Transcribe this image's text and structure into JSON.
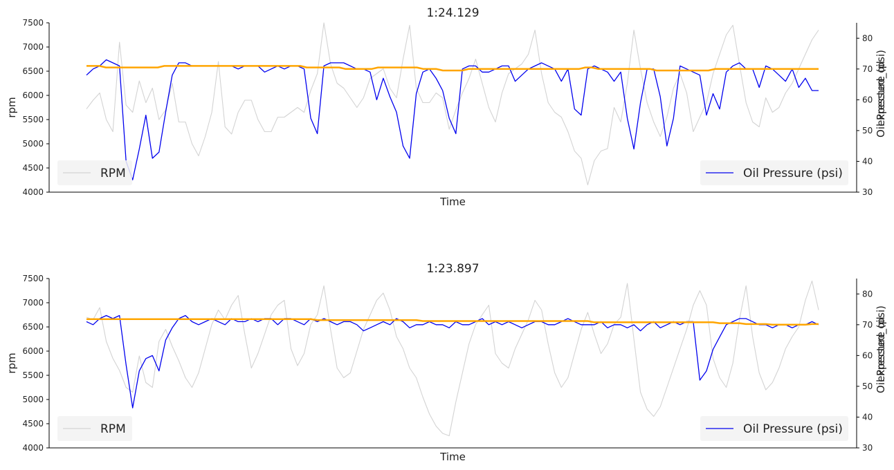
{
  "chart_data": [
    {
      "type": "line",
      "title": "1:24.129",
      "xlabel": "Time",
      "ylabel": "rpm",
      "y2label": "Oil Pressure (psi)",
      "y2label_overlap": "expected_oil",
      "ylim": [
        4000,
        7500
      ],
      "y2lim": [
        30,
        85
      ],
      "yticks": [
        4000,
        4500,
        5000,
        5500,
        6000,
        6500,
        7000,
        7500
      ],
      "y2ticks": [
        30,
        40,
        50,
        60,
        70,
        80
      ],
      "legend_left": {
        "label": "RPM",
        "placement": "lower-left"
      },
      "legend_right": {
        "label": "Oil Pressure (psi)",
        "placement": "lower-right"
      },
      "colors": {
        "rpm": "#d3d3d3",
        "oil": "#0000ee",
        "expected": "#ffa500"
      },
      "series": [
        {
          "key": "rpm",
          "name": "RPM",
          "axis": "left",
          "values": [
            5720,
            5900,
            6050,
            5500,
            5250,
            7100,
            5800,
            5650,
            6300,
            5850,
            6150,
            5500,
            5700,
            6250,
            5450,
            5450,
            5000,
            4750,
            5150,
            5650,
            6700,
            5350,
            5200,
            5650,
            5900,
            5900,
            5500,
            5250,
            5250,
            5550,
            5550,
            5650,
            5750,
            5650,
            6100,
            6450,
            7500,
            6650,
            6250,
            6150,
            5950,
            5750,
            5950,
            6350,
            6450,
            6550,
            6150,
            5950,
            6750,
            7450,
            6150,
            5850,
            5850,
            6050,
            5950,
            5300,
            5700,
            6050,
            6350,
            6750,
            6250,
            5750,
            5450,
            6050,
            6450,
            6550,
            6650,
            6850,
            7350,
            6450,
            5850,
            5650,
            5550,
            5250,
            4850,
            4700,
            4150,
            4650,
            4850,
            4900,
            5750,
            5450,
            6250,
            7350,
            6550,
            5850,
            5450,
            5150,
            5550,
            6150,
            6450,
            6050,
            5250,
            5550,
            5850,
            6450,
            6850,
            7250,
            7450,
            6650,
            5850,
            5450,
            5350,
            5950,
            5650,
            5750,
            6050,
            6250,
            6550,
            6850,
            7150,
            7350
          ]
        },
        {
          "key": "oil",
          "name": "Oil Pressure (psi)",
          "axis": "right",
          "values": [
            68,
            70,
            71,
            73,
            72,
            71,
            40,
            34,
            44,
            55,
            41,
            43,
            56,
            68,
            72,
            72,
            71,
            71,
            71,
            71,
            71,
            71,
            71,
            70,
            71,
            71,
            71,
            69,
            70,
            71,
            70,
            71,
            71,
            70,
            54,
            49,
            71,
            72,
            72,
            72,
            71,
            70,
            70,
            69,
            60,
            67,
            61,
            56,
            45,
            41,
            62,
            69,
            70,
            67,
            63,
            54,
            49,
            70,
            71,
            71,
            69,
            69,
            70,
            71,
            71,
            66,
            68,
            70,
            71,
            72,
            71,
            70,
            66,
            70,
            57,
            55,
            70,
            71,
            70,
            69,
            66,
            69,
            54,
            44,
            59,
            70,
            70,
            61,
            45,
            54,
            71,
            70,
            69,
            68,
            55,
            62,
            57,
            69,
            71,
            72,
            70,
            70,
            64,
            71,
            70,
            68,
            66,
            70,
            64,
            67,
            63,
            63
          ]
        },
        {
          "key": "expected",
          "name": "expected_oil",
          "axis": "right",
          "values": [
            71,
            71,
            71,
            70.5,
            70.5,
            70.5,
            70.5,
            70.5,
            70.5,
            70.5,
            70.5,
            70.5,
            71,
            71,
            71,
            71,
            71,
            71,
            71,
            71,
            71,
            71,
            71,
            71,
            71,
            71,
            71,
            71,
            71,
            71,
            71,
            71,
            71,
            71,
            70.5,
            70.5,
            70.5,
            70.5,
            70.5,
            70.5,
            70,
            70,
            70,
            70,
            70,
            70.5,
            70.5,
            70.5,
            70.5,
            70.5,
            70.5,
            70.5,
            70,
            70,
            70,
            69.5,
            69.5,
            69.5,
            69.5,
            70,
            70,
            70,
            70,
            70,
            70,
            70,
            70,
            70,
            70,
            70,
            70,
            70,
            70,
            70,
            70,
            70,
            70,
            70.5,
            70.5,
            70,
            70,
            70,
            70,
            70,
            70,
            70,
            70,
            70,
            69.5,
            69.5,
            69.5,
            69.5,
            69.5,
            69.5,
            69.5,
            69.5,
            69.5,
            70,
            70,
            70,
            70,
            70,
            70,
            70,
            70,
            70,
            70,
            70,
            70,
            70,
            70,
            70,
            70,
            70
          ]
        }
      ]
    },
    {
      "type": "line",
      "title": "1:23.897",
      "xlabel": "Time",
      "ylabel": "rpm",
      "y2label": "Oil Pressure (psi)",
      "y2label_overlap": "expected_oil",
      "ylim": [
        4000,
        7500
      ],
      "y2lim": [
        30,
        85
      ],
      "yticks": [
        4000,
        4500,
        5000,
        5500,
        6000,
        6500,
        7000,
        7500
      ],
      "y2ticks": [
        30,
        40,
        50,
        60,
        70,
        80
      ],
      "legend_left": {
        "label": "RPM",
        "placement": "lower-left"
      },
      "legend_right": {
        "label": "Oil Pressure (psi)",
        "placement": "lower-right"
      },
      "colors": {
        "rpm": "#d3d3d3",
        "oil": "#0000ee",
        "expected": "#ffa500"
      },
      "series": [
        {
          "key": "rpm",
          "name": "RPM",
          "axis": "left",
          "values": [
            6700,
            6650,
            6900,
            6200,
            5850,
            5600,
            5250,
            5150,
            5900,
            5350,
            5250,
            6200,
            6450,
            6100,
            5800,
            5450,
            5250,
            5550,
            6050,
            6550,
            6850,
            6650,
            6950,
            7150,
            6350,
            5650,
            5950,
            6350,
            6750,
            6950,
            7050,
            6050,
            5700,
            5950,
            6550,
            6750,
            7350,
            6450,
            5650,
            5450,
            5550,
            6000,
            6450,
            6750,
            7050,
            7200,
            6850,
            6300,
            6050,
            5650,
            5450,
            5050,
            4700,
            4450,
            4300,
            4250,
            4950,
            5550,
            6150,
            6550,
            6750,
            6950,
            5950,
            5750,
            5650,
            6050,
            6350,
            6650,
            7050,
            6850,
            6150,
            5550,
            5250,
            5450,
            5950,
            6450,
            6800,
            6350,
            5950,
            6150,
            6550,
            6700,
            7400,
            6250,
            5150,
            4800,
            4650,
            4850,
            5250,
            5650,
            6050,
            6450,
            6950,
            7250,
            6950,
            5850,
            5450,
            5250,
            5750,
            6650,
            7350,
            6300,
            5550,
            5200,
            5350,
            5650,
            6050,
            6300,
            6500,
            7050,
            7450,
            6850
          ]
        },
        {
          "key": "oil",
          "name": "Oil Pressure (psi)",
          "axis": "right",
          "values": [
            71,
            70,
            72,
            73,
            72,
            73,
            57,
            43,
            55,
            59,
            60,
            55,
            65,
            69,
            72,
            73,
            71,
            70,
            71,
            72,
            71,
            70,
            72,
            71,
            71,
            72,
            71,
            72,
            72,
            70,
            72,
            72,
            71,
            70,
            72,
            71,
            72,
            71,
            70,
            71,
            71,
            70,
            68,
            69,
            70,
            71,
            70,
            72,
            71,
            69,
            70,
            70,
            71,
            70,
            70,
            69,
            71,
            70,
            70,
            71,
            72,
            70,
            71,
            70,
            71,
            70,
            69,
            70,
            71,
            71,
            70,
            70,
            71,
            72,
            71,
            70,
            70,
            70,
            71,
            69,
            70,
            70,
            69,
            70,
            68,
            70,
            71,
            69,
            70,
            71,
            70,
            71,
            71,
            52,
            55,
            62,
            66,
            70,
            71,
            72,
            72,
            71,
            70,
            70,
            69,
            70,
            70,
            69,
            70,
            70,
            71,
            70
          ]
        },
        {
          "key": "expected",
          "name": "expected_oil",
          "axis": "right",
          "values": [
            71.8,
            71.8,
            71.8,
            71.8,
            71.8,
            71.8,
            71.8,
            71.8,
            71.8,
            71.8,
            71.8,
            71.8,
            71.8,
            71.8,
            71.8,
            71.8,
            71.8,
            71.8,
            71.8,
            71.8,
            71.8,
            71.8,
            71.8,
            71.8,
            71.8,
            71.8,
            71.8,
            71.8,
            71.8,
            71.8,
            71.8,
            71.8,
            71.8,
            71.8,
            71.8,
            71.5,
            71.5,
            71.5,
            71.5,
            71.5,
            71.5,
            71.5,
            71.5,
            71.5,
            71.5,
            71.5,
            71.5,
            71.5,
            71.5,
            71.5,
            71.5,
            71.2,
            71.2,
            71.2,
            71.2,
            71.2,
            71.2,
            71.2,
            71.2,
            71.2,
            71.2,
            71.2,
            71.2,
            71.2,
            71.2,
            71.2,
            71.2,
            71.2,
            71.2,
            71.2,
            71.2,
            71.2,
            71.2,
            71.2,
            71.2,
            71.2,
            71.2,
            70.8,
            70.8,
            70.8,
            70.8,
            70.8,
            70.8,
            70.8,
            70.8,
            70.8,
            70.8,
            70.8,
            70.8,
            70.8,
            70.8,
            70.8,
            70.8,
            70.8,
            70.8,
            70.8,
            70.5,
            70.5,
            70.5,
            70.5,
            70.2,
            70.2,
            70.2,
            70.2,
            70,
            70,
            70,
            70,
            70,
            70,
            70.2,
            70.2
          ]
        }
      ]
    }
  ]
}
